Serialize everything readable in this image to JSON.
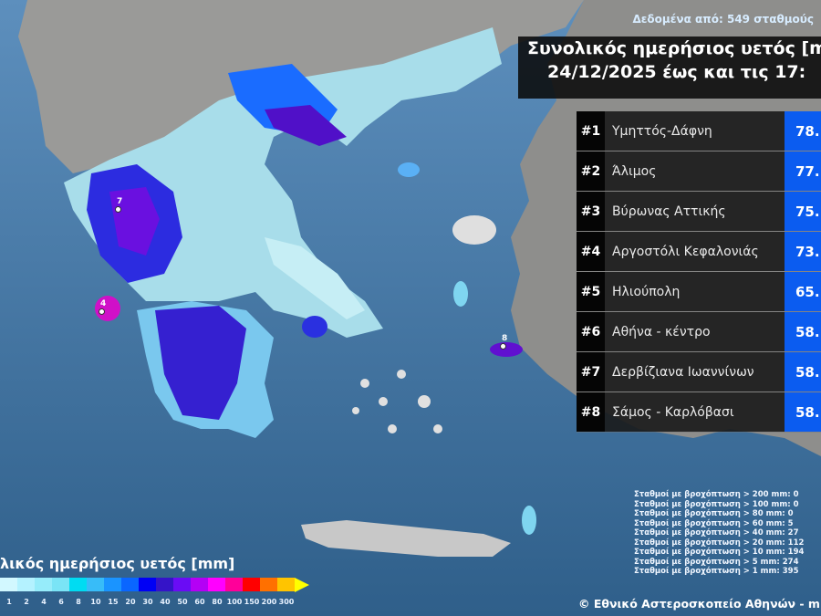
{
  "source_note": "Δεδομένα από: 549 σταθμούς",
  "title": {
    "line1": "Συνολικός ημερήσιος υετός [m",
    "line2": "24/12/2025 έως και τις 17:"
  },
  "ranking": [
    {
      "rank": "#1",
      "station": "Υμηττός-Δάφνη",
      "value": "78."
    },
    {
      "rank": "#2",
      "station": "Άλιμος",
      "value": "77."
    },
    {
      "rank": "#3",
      "station": "Βύρωνας Αττικής",
      "value": "75."
    },
    {
      "rank": "#4",
      "station": "Αργοστόλι Κεφαλονιάς",
      "value": "73."
    },
    {
      "rank": "#5",
      "station": "Ηλιούπολη",
      "value": "65."
    },
    {
      "rank": "#6",
      "station": "Αθήνα - κέντρο",
      "value": "58."
    },
    {
      "rank": "#7",
      "station": "Δερβίζιανα Ιωαννίνων",
      "value": "58."
    },
    {
      "rank": "#8",
      "station": "Σάμος - Καρλόβασι",
      "value": "58."
    }
  ],
  "stats": [
    "Σταθμοί με βροχόπτωση > 200 mm: 0",
    "Σταθμοί με βροχόπτωση > 100 mm: 0",
    "Σταθμοί με βροχόπτωση > 80 mm: 0",
    "Σταθμοί με βροχόπτωση > 60 mm: 5",
    "Σταθμοί με βροχόπτωση > 40 mm: 27",
    "Σταθμοί με βροχόπτωση > 20 mm: 112",
    "Σταθμοί με βροχόπτωση > 10 mm: 194",
    "Σταθμοί με βροχόπτωση > 5 mm: 274",
    "Σταθμοί με βροχόπτωση > 1 mm: 395"
  ],
  "copyright": "© Εθνικό Αστεροσκοπείο Αθηνών - m",
  "legend": {
    "title": "λικός ημερήσιος υετός [mm]",
    "ticks": [
      "1",
      "2",
      "4",
      "6",
      "8",
      "10",
      "15",
      "20",
      "30",
      "40",
      "50",
      "60",
      "80",
      "100",
      "150",
      "200",
      "300"
    ],
    "colors": [
      "#d2f8ff",
      "#b4f2ff",
      "#96ecfa",
      "#7ae4f6",
      "#00dcf2",
      "#38bcf8",
      "#1a94ff",
      "#0a66ff",
      "#0000f5",
      "#3514c8",
      "#6a0cf5",
      "#b400f5",
      "#ff00ff",
      "#ff0099",
      "#ff0000",
      "#ff7000",
      "#ffc400"
    ],
    "arrow_color": "#ffff00"
  },
  "markers": [
    "7",
    "4",
    "8"
  ]
}
